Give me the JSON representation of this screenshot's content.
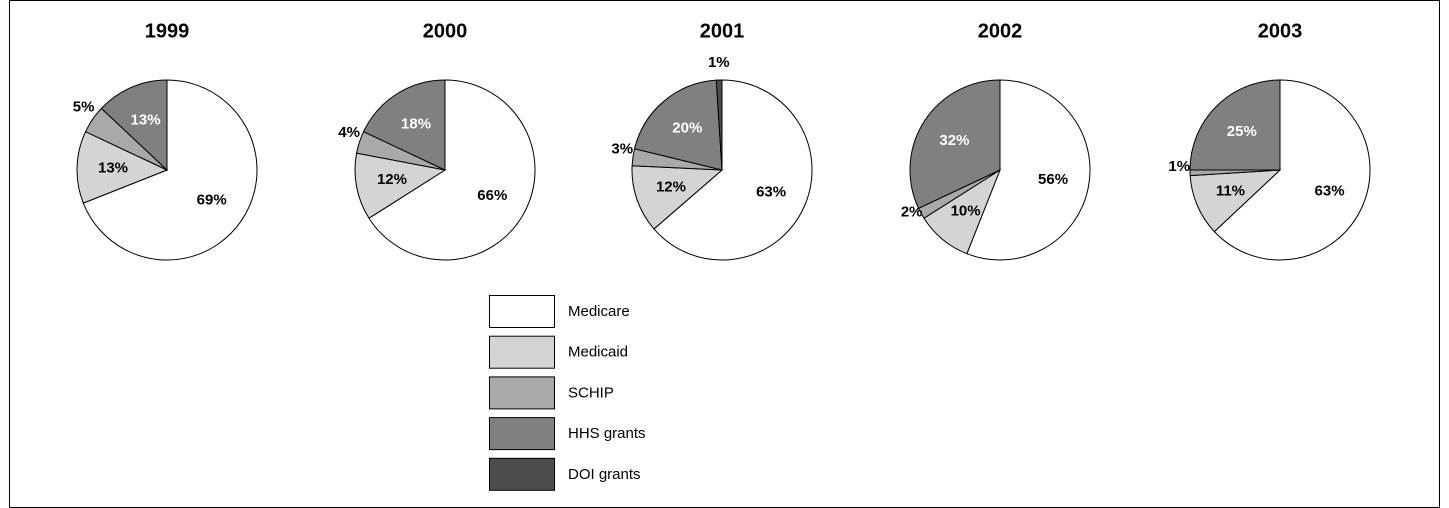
{
  "legend": {
    "categories": [
      "Medicare",
      "Medicaid",
      "SCHIP",
      "HHS grants",
      "DOI grants"
    ],
    "colors": [
      "#ffffff",
      "#d4d4d4",
      "#a9a9ab",
      "#808083",
      "#4d4d4f"
    ]
  },
  "chart_data": [
    {
      "type": "pie",
      "title": "1999",
      "values": [
        69,
        13,
        5,
        13,
        null
      ],
      "value_labels": [
        "69%",
        "13%",
        "5%",
        "13%",
        null
      ]
    },
    {
      "type": "pie",
      "title": "2000",
      "values": [
        66,
        12,
        4,
        18,
        null
      ],
      "value_labels": [
        "66%",
        "12%",
        "4%",
        "18%",
        null
      ]
    },
    {
      "type": "pie",
      "title": "2001",
      "values": [
        63,
        12,
        3,
        20,
        1
      ],
      "value_labels": [
        "63%",
        "12%",
        "3%",
        "20%",
        "1%"
      ]
    },
    {
      "type": "pie",
      "title": "2002",
      "values": [
        56,
        10,
        2,
        32,
        null
      ],
      "value_labels": [
        "56%",
        "10%",
        "2%",
        "32%",
        null
      ]
    },
    {
      "type": "pie",
      "title": "2003",
      "values": [
        63,
        11,
        1,
        25,
        null
      ],
      "value_labels": [
        "63%",
        "11%",
        "1%",
        "25%",
        null
      ]
    }
  ]
}
